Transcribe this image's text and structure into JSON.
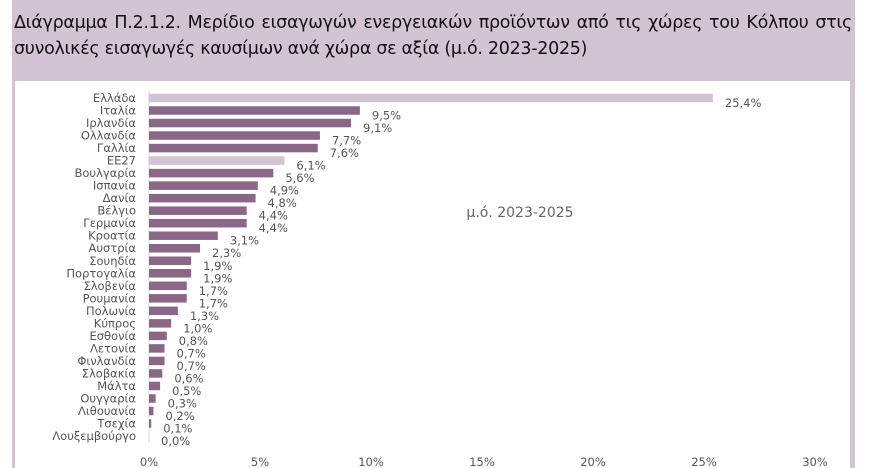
{
  "title": "Διάγραμμα Π.2.1.2. Μερίδιο εισαγωγών ενεργειακών προϊόντων από τις χώρες του Κόλπου στις συνολικές εισαγωγές καυσίμων ανά χώρα σε αξία (μ.ό. 2023-2025)",
  "chart_data": {
    "type": "bar",
    "orientation": "horizontal",
    "title": "Διάγραμμα Π.2.1.2. Μερίδιο εισαγωγών ενεργειακών προϊόντων από τις χώρες του Κόλπου στις συνολικές εισαγωγές καυσίμων ανά χώρα σε αξία (μ.ό. 2023-2025)",
    "annotation": "μ.ό. 2023-2025",
    "categories": [
      "Ελλάδα",
      "Ιταλία",
      "Ιρλανδία",
      "Ολλανδία",
      "Γαλλία",
      "ΕΕ27",
      "Βουλγαρία",
      "Ισπανία",
      "Δανία",
      "Βέλγιο",
      "Γερμανία",
      "Κροατία",
      "Αυστρία",
      "Σουηδία",
      "Πορτογαλία",
      "Σλοβενία",
      "Ρουμανία",
      "Πολωνία",
      "Κύπρος",
      "Εσθονία",
      "Λετονία",
      "Φινλανδία",
      "Σλοβακία",
      "Μάλτα",
      "Ουγγαρία",
      "Λιθουανία",
      "Τσεχία",
      "Λουξεμβούργο"
    ],
    "values": [
      25.4,
      9.5,
      9.1,
      7.7,
      7.6,
      6.1,
      5.6,
      4.9,
      4.8,
      4.4,
      4.4,
      3.1,
      2.3,
      1.9,
      1.9,
      1.7,
      1.7,
      1.3,
      1.0,
      0.8,
      0.7,
      0.7,
      0.6,
      0.5,
      0.3,
      0.2,
      0.1,
      0.0
    ],
    "value_labels": [
      "25,4%",
      "9,5%",
      "9,1%",
      "7,7%",
      "7,6%",
      "6,1%",
      "5,6%",
      "4,9%",
      "4,8%",
      "4,4%",
      "4,4%",
      "3,1%",
      "2,3%",
      "1,9%",
      "1,9%",
      "1,7%",
      "1,7%",
      "1,3%",
      "1,0%",
      "0,8%",
      "0,7%",
      "0,7%",
      "0,6%",
      "0,5%",
      "0,3%",
      "0,2%",
      "0,1%",
      "0,0%"
    ],
    "highlight": [
      "Ελλάδα",
      "ΕΕ27"
    ],
    "xlim": [
      0,
      30
    ],
    "xticks": [
      0,
      5,
      10,
      15,
      20,
      25,
      30
    ],
    "xtick_labels": [
      "0%",
      "5%",
      "10%",
      "15%",
      "20%",
      "25%",
      "30%"
    ],
    "xlabel": "",
    "ylabel": "",
    "grid": false,
    "colors": {
      "bar": "#8a6786",
      "highlight": "#d3c4d3",
      "text": "#555555"
    }
  }
}
